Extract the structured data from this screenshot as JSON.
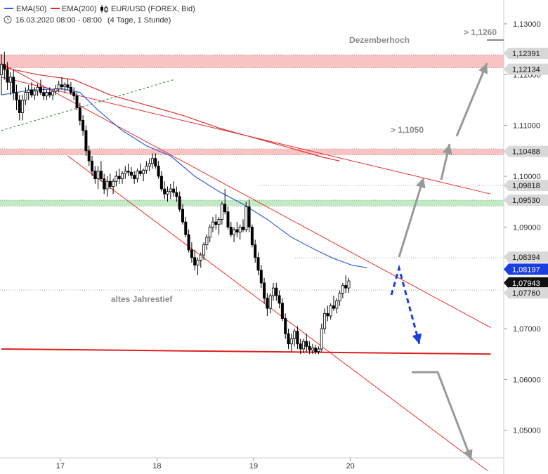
{
  "legend": {
    "ema50": "EMA(50)",
    "ema200": "EMA(200)",
    "symbol": "EUR/USD (FOREX, Bid)",
    "date_info": "16.03.2020 08:00 - 08:00",
    "period_info": "(4 Tage, 1 Stunde)"
  },
  "colors": {
    "ema50": "#3060dd",
    "ema200": "#e03030",
    "trend_line": "#e83030",
    "support": "#dd2020",
    "resistance_zone": "#f8b8b8",
    "support_zone": "#b8e8b8",
    "arrow_gray": "#999999",
    "arrow_blue": "#1a3ee0",
    "candle": "#000000"
  },
  "annotations": {
    "dezemberhoch": "Dezemberhoch",
    "gt_11260": "> 1,1260",
    "gt_11050": "> 1,1050",
    "altes_jahrestief": "altes Jahrestief"
  },
  "chart_data": {
    "type": "candlestick",
    "symbol": "EUR/USD",
    "ylim": [
      1.0425,
      1.134
    ],
    "y_ticks": [
      "1,13000",
      "1,12000",
      "1,11000",
      "1,10000",
      "1,09000",
      "1,07000",
      "1,06000",
      "1,05000"
    ],
    "y_tick_values": [
      1.13,
      1.12,
      1.11,
      1.1,
      1.09,
      1.07,
      1.06,
      1.05
    ],
    "x_ticks": [
      "17",
      "18",
      "19",
      "20"
    ],
    "x_tick_bars": [
      19.5,
      51.5,
      83.5,
      115.5
    ],
    "bar_count_span": [
      0,
      162
    ],
    "candles": [
      [
        1.12,
        1.124,
        1.116,
        1.122
      ],
      [
        1.122,
        1.1245,
        1.119,
        1.121
      ],
      [
        1.121,
        1.1225,
        1.117,
        1.1185
      ],
      [
        1.1185,
        1.1205,
        1.116,
        1.1195
      ],
      [
        1.1195,
        1.121,
        1.115,
        1.1165
      ],
      [
        1.1165,
        1.118,
        1.113,
        1.115
      ],
      [
        1.115,
        1.116,
        1.111,
        1.1125
      ],
      [
        1.1125,
        1.116,
        1.111,
        1.115
      ],
      [
        1.115,
        1.1175,
        1.114,
        1.1165
      ],
      [
        1.1165,
        1.118,
        1.115,
        1.117
      ],
      [
        1.117,
        1.1185,
        1.1155,
        1.116
      ],
      [
        1.116,
        1.1175,
        1.115,
        1.1168
      ],
      [
        1.1168,
        1.1182,
        1.1158,
        1.1175
      ],
      [
        1.1175,
        1.119,
        1.116,
        1.1165
      ],
      [
        1.1165,
        1.1175,
        1.115,
        1.1158
      ],
      [
        1.1158,
        1.117,
        1.115,
        1.1165
      ],
      [
        1.1165,
        1.1175,
        1.1155,
        1.116
      ],
      [
        1.116,
        1.117,
        1.115,
        1.1167
      ],
      [
        1.1167,
        1.118,
        1.116,
        1.1172
      ],
      [
        1.1172,
        1.1188,
        1.1165,
        1.118
      ],
      [
        1.118,
        1.1195,
        1.117,
        1.1176
      ],
      [
        1.1176,
        1.1185,
        1.1165,
        1.118
      ],
      [
        1.118,
        1.1192,
        1.117,
        1.1175
      ],
      [
        1.1175,
        1.1185,
        1.116,
        1.1165
      ],
      [
        1.1165,
        1.1175,
        1.115,
        1.1158
      ],
      [
        1.1158,
        1.1165,
        1.113,
        1.1135
      ],
      [
        1.1135,
        1.1145,
        1.11,
        1.111
      ],
      [
        1.111,
        1.112,
        1.108,
        1.109
      ],
      [
        1.109,
        1.11,
        1.104,
        1.105
      ],
      [
        1.105,
        1.106,
        1.102,
        1.103
      ],
      [
        1.103,
        1.104,
        1.1,
        1.101
      ],
      [
        1.101,
        1.102,
        1.0985,
        1.0995
      ],
      [
        1.0995,
        1.102,
        1.0975,
        1.101
      ],
      [
        1.101,
        1.103,
        1.099,
        1.0995
      ],
      [
        1.0995,
        1.1005,
        1.0965,
        1.0975
      ],
      [
        1.0975,
        1.1,
        1.096,
        1.099
      ],
      [
        1.099,
        1.1005,
        1.0975,
        1.098
      ],
      [
        1.098,
        1.0995,
        1.0965,
        1.099
      ],
      [
        1.099,
        1.101,
        1.098,
        1.1
      ],
      [
        1.1,
        1.1015,
        1.0985,
        1.0995
      ],
      [
        1.0995,
        1.101,
        1.0985,
        1.1005
      ],
      [
        1.1005,
        1.102,
        1.0995,
        1.101
      ],
      [
        1.101,
        1.1025,
        1.1,
        1.1008
      ],
      [
        1.1008,
        1.1018,
        1.0995,
        1.1002
      ],
      [
        1.1002,
        1.101,
        1.0985,
        1.0995
      ],
      [
        1.0995,
        1.1015,
        1.0988,
        1.101
      ],
      [
        1.101,
        1.1025,
        1.1,
        1.1005
      ],
      [
        1.1005,
        1.1015,
        1.099,
        1.1012
      ],
      [
        1.1012,
        1.103,
        1.1005,
        1.102
      ],
      [
        1.102,
        1.1035,
        1.101,
        1.1025
      ],
      [
        1.1025,
        1.1045,
        1.1015,
        1.1035
      ],
      [
        1.1035,
        1.1045,
        1.1015,
        1.102
      ],
      [
        1.102,
        1.103,
        1.0995,
        1.1
      ],
      [
        1.1,
        1.101,
        1.097,
        1.0975
      ],
      [
        1.0975,
        1.099,
        1.0955,
        1.0965
      ],
      [
        1.0965,
        1.098,
        1.095,
        1.097
      ],
      [
        1.097,
        1.0985,
        1.0955,
        1.0975
      ],
      [
        1.0975,
        1.099,
        1.096,
        1.0968
      ],
      [
        1.0968,
        1.098,
        1.095,
        1.096
      ],
      [
        1.096,
        1.097,
        1.093,
        1.0935
      ],
      [
        1.0935,
        1.0945,
        1.0905,
        1.091
      ],
      [
        1.091,
        1.092,
        1.088,
        1.0885
      ],
      [
        1.0885,
        1.0895,
        1.085,
        1.0855
      ],
      [
        1.0855,
        1.087,
        1.083,
        1.084
      ],
      [
        1.084,
        1.0855,
        1.0815,
        1.0825
      ],
      [
        1.0825,
        1.084,
        1.0805,
        1.0835
      ],
      [
        1.0835,
        1.085,
        1.082,
        1.0845
      ],
      [
        1.0845,
        1.087,
        1.0835,
        1.0865
      ],
      [
        1.0865,
        1.0885,
        1.0855,
        1.088
      ],
      [
        1.088,
        1.0905,
        1.087,
        1.09
      ],
      [
        1.09,
        1.092,
        1.089,
        1.091
      ],
      [
        1.091,
        1.0925,
        1.0895,
        1.0905
      ],
      [
        1.0905,
        1.092,
        1.0885,
        1.0915
      ],
      [
        1.0915,
        1.095,
        1.0905,
        1.0945
      ],
      [
        1.0945,
        1.0975,
        1.0925,
        1.093
      ],
      [
        1.093,
        1.094,
        1.0895,
        1.09
      ],
      [
        1.09,
        1.091,
        1.088,
        1.0885
      ],
      [
        1.0885,
        1.09,
        1.087,
        1.0895
      ],
      [
        1.0895,
        1.091,
        1.088,
        1.089
      ],
      [
        1.089,
        1.0905,
        1.0875,
        1.09
      ],
      [
        1.09,
        1.0915,
        1.089,
        1.0895
      ],
      [
        1.0895,
        1.095,
        1.089,
        1.094
      ],
      [
        1.094,
        1.0955,
        1.089,
        1.09
      ],
      [
        1.09,
        1.0905,
        1.086,
        1.0865
      ],
      [
        1.0865,
        1.0875,
        1.083,
        1.084
      ],
      [
        1.084,
        1.085,
        1.0805,
        1.0815
      ],
      [
        1.0815,
        1.0825,
        1.078,
        1.079
      ],
      [
        1.079,
        1.08,
        1.075,
        1.076
      ],
      [
        1.076,
        1.077,
        1.0725,
        1.074
      ],
      [
        1.074,
        1.077,
        1.073,
        1.0765
      ],
      [
        1.0765,
        1.079,
        1.0755,
        1.078
      ],
      [
        1.078,
        1.079,
        1.0755,
        1.0765
      ],
      [
        1.0765,
        1.0775,
        1.074,
        1.075
      ],
      [
        1.075,
        1.076,
        1.0715,
        1.072
      ],
      [
        1.072,
        1.073,
        1.068,
        1.069
      ],
      [
        1.069,
        1.07,
        1.066,
        1.067
      ],
      [
        1.067,
        1.069,
        1.0655,
        1.068
      ],
      [
        1.068,
        1.07,
        1.0665,
        1.0695
      ],
      [
        1.0695,
        1.0705,
        1.066,
        1.067
      ],
      [
        1.067,
        1.068,
        1.065,
        1.066
      ],
      [
        1.066,
        1.068,
        1.0652,
        1.0675
      ],
      [
        1.0675,
        1.069,
        1.0655,
        1.0665
      ],
      [
        1.0665,
        1.0675,
        1.065,
        1.0658
      ],
      [
        1.0658,
        1.067,
        1.065,
        1.0662
      ],
      [
        1.0662,
        1.0668,
        1.065,
        1.0655
      ],
      [
        1.0655,
        1.0665,
        1.065,
        1.066
      ],
      [
        1.066,
        1.071,
        1.0655,
        1.07
      ],
      [
        1.07,
        1.074,
        1.069,
        1.073
      ],
      [
        1.073,
        1.0745,
        1.0715,
        1.0725
      ],
      [
        1.0725,
        1.075,
        1.0718,
        1.0745
      ],
      [
        1.0745,
        1.0765,
        1.0735,
        1.074
      ],
      [
        1.074,
        1.076,
        1.073,
        1.0755
      ],
      [
        1.0755,
        1.0775,
        1.0745,
        1.077
      ],
      [
        1.077,
        1.079,
        1.076,
        1.0785
      ],
      [
        1.0785,
        1.0805,
        1.077,
        1.078
      ],
      [
        1.078,
        1.08,
        1.077,
        1.0794
      ]
    ],
    "ema50": [
      [
        0,
        1.116
      ],
      [
        10,
        1.117
      ],
      [
        20,
        1.1172
      ],
      [
        26,
        1.1165
      ],
      [
        32,
        1.113
      ],
      [
        40,
        1.109
      ],
      [
        48,
        1.106
      ],
      [
        56,
        1.104
      ],
      [
        64,
        1.1
      ],
      [
        72,
        1.097
      ],
      [
        80,
        1.0945
      ],
      [
        88,
        1.0915
      ],
      [
        96,
        1.088
      ],
      [
        104,
        1.0855
      ],
      [
        110,
        1.0838
      ],
      [
        116,
        1.0825
      ],
      [
        121,
        1.082
      ]
    ],
    "ema200": [
      [
        0,
        1.1215
      ],
      [
        12,
        1.12
      ],
      [
        24,
        1.119
      ],
      [
        36,
        1.116
      ],
      [
        48,
        1.114
      ],
      [
        60,
        1.112
      ],
      [
        72,
        1.1095
      ],
      [
        84,
        1.1075
      ],
      [
        96,
        1.1055
      ],
      [
        106,
        1.1038
      ],
      [
        112,
        1.103
      ]
    ],
    "trendlines": [
      {
        "name": "channel-upper",
        "points": [
          [
            0,
            1.1222
          ],
          [
            162,
            1.0702
          ]
        ]
      },
      {
        "name": "channel-middle",
        "points": [
          [
            0,
            1.1195
          ],
          [
            162,
            1.0965
          ]
        ]
      },
      {
        "name": "channel-lower",
        "points": [
          [
            22,
            1.104
          ],
          [
            161,
            1.042
          ]
        ]
      },
      {
        "name": "support",
        "points": [
          [
            0,
            1.066
          ],
          [
            162,
            1.065
          ]
        ]
      }
    ],
    "short_trend_dashed": [
      [
        0,
        1.109
      ],
      [
        57,
        1.119
      ]
    ],
    "price_levels": [
      {
        "label": "1,12391",
        "value": 1.12391,
        "style": "gray"
      },
      {
        "label": "1,12134",
        "value": 1.12134,
        "style": "gray"
      },
      {
        "label": "1,10488",
        "value": 1.10488,
        "style": "gray"
      },
      {
        "label": "1,09818",
        "value": 1.09818,
        "style": "gray"
      },
      {
        "label": "1,09530",
        "value": 1.0953,
        "style": "gray"
      },
      {
        "label": "1,08394",
        "value": 1.08394,
        "style": "gray"
      },
      {
        "label": "1,08197",
        "value": 1.08197,
        "style": "blue"
      },
      {
        "label": "1,07943",
        "value": 1.07943,
        "style": "black"
      },
      {
        "label": "1,07760",
        "value": 1.0776,
        "style": "gray"
      }
    ],
    "zones": [
      {
        "name": "dezemberhoch-zone",
        "y1": 1.12134,
        "y2": 1.12391,
        "color": "#f8b8b8"
      },
      {
        "name": "resistance-zone",
        "y1": 1.1042,
        "y2": 1.1054,
        "color": "#f8b8b8"
      },
      {
        "name": "support-zone",
        "y1": 1.09414,
        "y2": 1.0953,
        "color": "#b8e8b8"
      }
    ]
  }
}
